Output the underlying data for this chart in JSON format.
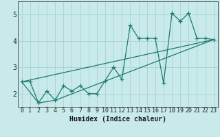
{
  "xlabel": "Humidex (Indice chaleur)",
  "bg_color": "#c8eaea",
  "grid_color": "#b0d4d4",
  "line_color": "#1a7a6e",
  "xlim": [
    -0.5,
    23.5
  ],
  "ylim": [
    1.5,
    5.5
  ],
  "xticks": [
    0,
    1,
    2,
    3,
    4,
    5,
    6,
    7,
    8,
    9,
    10,
    11,
    12,
    13,
    14,
    15,
    16,
    17,
    18,
    19,
    20,
    21,
    22,
    23
  ],
  "yticks": [
    2,
    3,
    4,
    5
  ],
  "series1_x": [
    0,
    1,
    2,
    3,
    4,
    5,
    6,
    7,
    8,
    9,
    10,
    11,
    12,
    13,
    14,
    15,
    16,
    17,
    18,
    19,
    20,
    21,
    22,
    23
  ],
  "series1_y": [
    2.45,
    2.45,
    1.65,
    2.1,
    1.75,
    2.3,
    2.1,
    2.3,
    2.0,
    2.0,
    2.5,
    3.0,
    2.55,
    4.6,
    4.1,
    4.1,
    4.1,
    2.4,
    5.05,
    4.75,
    5.05,
    4.1,
    4.1,
    4.05
  ],
  "series2_x": [
    0,
    23
  ],
  "series2_y": [
    2.45,
    4.05
  ],
  "series3_x": [
    0,
    2,
    4,
    23
  ],
  "series3_y": [
    2.45,
    1.65,
    1.75,
    4.05
  ],
  "font_size_label": 7,
  "font_size_tick": 6,
  "marker_size": 3,
  "line_width": 0.9
}
